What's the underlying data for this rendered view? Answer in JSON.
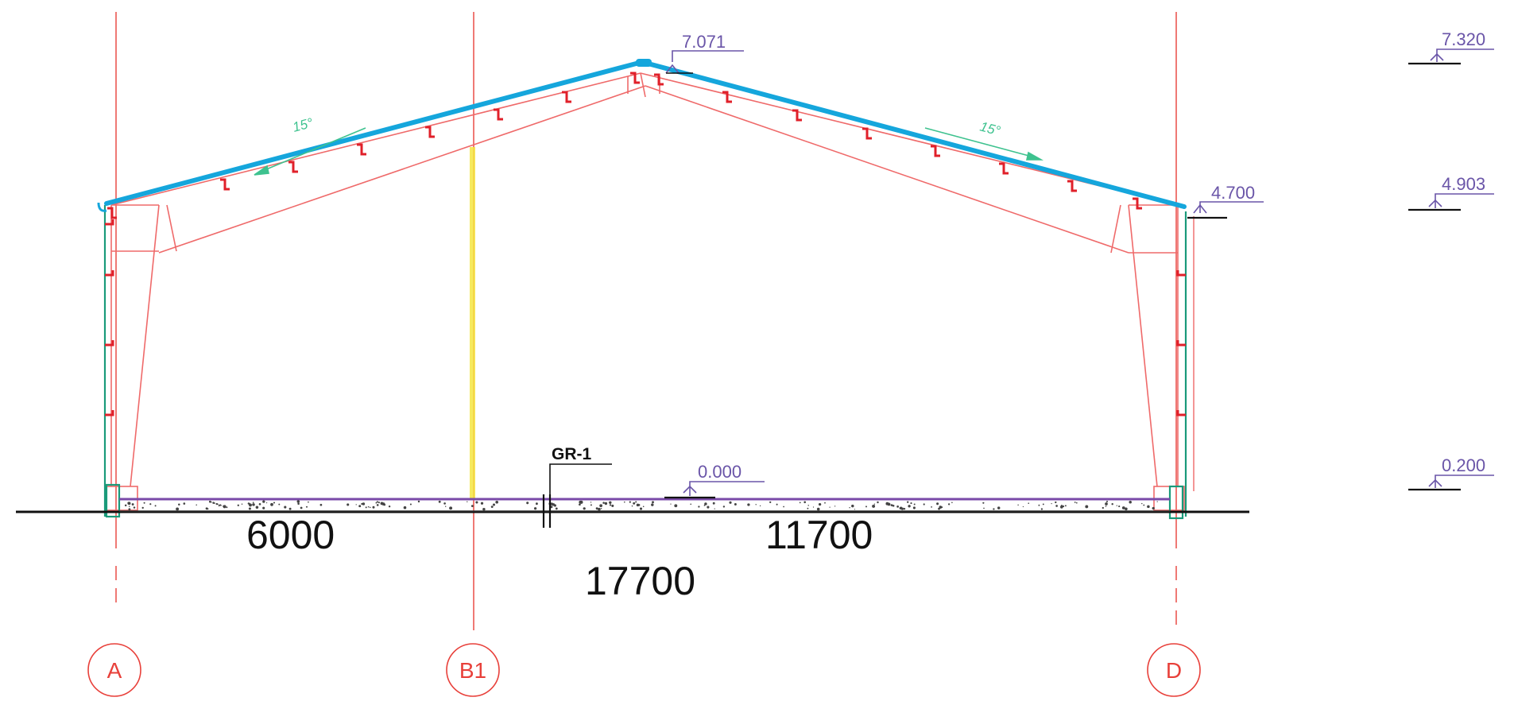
{
  "colors": {
    "grid": "#e8403a",
    "frame": "#ef6a6a",
    "roof": "#15a6dc",
    "wall": "#1a9a7a",
    "level": "#6a55a8",
    "slab": "#7a4aa8",
    "slope": "#3ec28f",
    "ink": "#111111",
    "highlight": "#f5e642"
  },
  "levels": {
    "ridge": "7.071",
    "eave": "4.700",
    "floor": "0.000",
    "right_scale": [
      "7.320",
      "4.903",
      "0.200"
    ]
  },
  "slopes": {
    "left": "15°",
    "right": "15°"
  },
  "section_tag": "GR-1",
  "dimensions": {
    "span_a_b1": "6000",
    "span_b1_d": "11700",
    "total": "17700"
  },
  "axes": [
    "A",
    "B1",
    "D"
  ]
}
